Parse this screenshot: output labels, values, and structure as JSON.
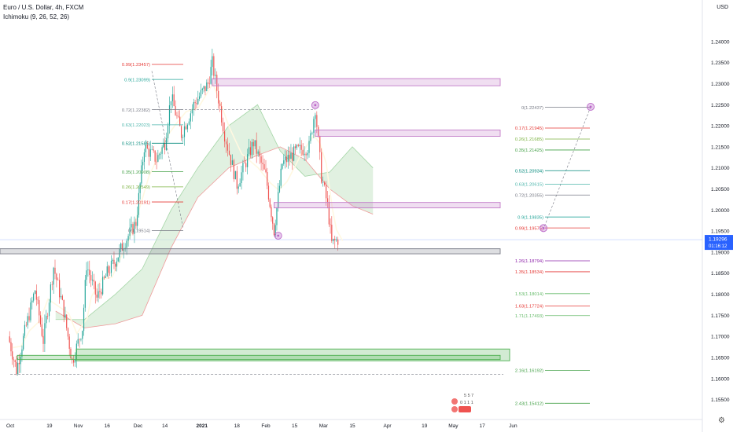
{
  "header": {
    "symbol_title": "Euro / U.S. Dollar, 4h, FXCM",
    "indicator_label": "Ichimoku (9, 26, 52, 26)",
    "currency": "USD"
  },
  "price_tag": {
    "price": "1.19296",
    "countdown": "01:16:12"
  },
  "chart_data": {
    "type": "candlestick",
    "symbol": "EURUSD",
    "timeframe": "4h",
    "ylim": [
      1.1525,
      1.2465
    ],
    "y_ticks": [
      "1.15500",
      "1.16000",
      "1.16500",
      "1.17000",
      "1.17500",
      "1.18000",
      "1.18500",
      "1.19000",
      "1.19500",
      "1.20000",
      "1.20500",
      "1.21000",
      "1.21500",
      "1.22000",
      "1.22500",
      "1.23000",
      "1.23500",
      "1.24000"
    ],
    "x_ticks": [
      "Oct",
      "19",
      "Nov",
      "16",
      "Dec",
      "14",
      "2021",
      "18",
      "Feb",
      "15",
      "Mar",
      "15",
      "Apr",
      "19",
      "May",
      "17",
      "Jun"
    ],
    "price_path": [
      [
        "Sep 29",
        1.17
      ],
      [
        "Oct 3",
        1.162
      ],
      [
        "Oct 7",
        1.171
      ],
      [
        "Oct 12",
        1.181
      ],
      [
        "Oct 16",
        1.169
      ],
      [
        "Oct 21",
        1.1865
      ],
      [
        "Oct 26",
        1.176
      ],
      [
        "Oct 30",
        1.164
      ],
      [
        "Nov 4",
        1.172
      ],
      [
        "Nov 6",
        1.187
      ],
      [
        "Nov 11",
        1.179
      ],
      [
        "Nov 16",
        1.185
      ],
      [
        "Nov 20",
        1.188
      ],
      [
        "Nov 24",
        1.192
      ],
      [
        "Nov 30",
        1.197
      ],
      [
        "Dec 4",
        1.215
      ],
      [
        "Dec 10",
        1.212
      ],
      [
        "Dec 14",
        1.216
      ],
      [
        "Dec 17",
        1.227
      ],
      [
        "Dec 22",
        1.218
      ],
      [
        "Dec 28",
        1.225
      ],
      [
        "Jan 4",
        1.23
      ],
      [
        "Jan 6",
        1.2349
      ],
      [
        "Jan 12",
        1.218
      ],
      [
        "Jan 18",
        1.206
      ],
      [
        "Jan 26",
        1.216
      ],
      [
        "Feb 1",
        1.208
      ],
      [
        "Feb 5",
        1.1952
      ],
      [
        "Feb 9",
        1.211
      ],
      [
        "Feb 16",
        1.214
      ],
      [
        "Feb 22",
        1.215
      ],
      [
        "Feb 25",
        1.2243
      ],
      [
        "Feb 28",
        1.208
      ],
      [
        "Mar 3",
        1.201
      ],
      [
        "Mar 5",
        1.192
      ],
      [
        "Mar 8",
        1.193
      ]
    ],
    "cloud_span_a": [
      [
        "Oct 22",
        1.174
      ],
      [
        "Nov 5",
        1.174
      ],
      [
        "Nov 20",
        1.18
      ],
      [
        "Dec 3",
        1.186
      ],
      [
        "Dec 17",
        1.2
      ],
      [
        "Dec 30",
        1.21
      ],
      [
        "Jan 14",
        1.22
      ],
      [
        "Jan 28",
        1.225
      ],
      [
        "Feb 8",
        1.214
      ],
      [
        "Feb 20",
        1.208
      ],
      [
        "Mar 4",
        1.209
      ],
      [
        "Mar 15",
        1.215
      ],
      [
        "Mar 25",
        1.21
      ]
    ],
    "cloud_span_b": [
      [
        "Oct 22",
        1.176
      ],
      [
        "Nov 5",
        1.172
      ],
      [
        "Nov 20",
        1.173
      ],
      [
        "Dec 3",
        1.175
      ],
      [
        "Dec 17",
        1.191
      ],
      [
        "Dec 30",
        1.203
      ],
      [
        "Jan 14",
        1.21
      ],
      [
        "Jan 28",
        1.213
      ],
      [
        "Feb 8",
        1.215
      ],
      [
        "Feb 20",
        1.212
      ],
      [
        "Mar 4",
        1.205
      ],
      [
        "Mar 15",
        1.201
      ],
      [
        "Mar 25",
        1.199
      ]
    ],
    "fib_left": {
      "levels": [
        {
          "label": "0.99(1.23457)",
          "color": "#e53935"
        },
        {
          "label": "0.9(1.23099)",
          "color": "#26a69a"
        },
        {
          "label": "0.72(1.22382)",
          "color": "#787b86"
        },
        {
          "label": "0.63(1.22023)",
          "color": "#4db6ac"
        },
        {
          "label": "0.52(1.21585)",
          "color": "#00897b"
        },
        {
          "label": "0.35(1.20908)",
          "color": "#43a047"
        },
        {
          "label": "0.26(1.20549)",
          "color": "#7cb342"
        },
        {
          "label": "0.17(1.20191)",
          "color": "#e53935"
        },
        {
          "label": "0(1.19514)",
          "color": "#787b86"
        }
      ]
    },
    "fib_right": {
      "levels": [
        {
          "label": "0(1.22437)",
          "color": "#787b86"
        },
        {
          "label": "0.17(1.21945)",
          "color": "#e53935"
        },
        {
          "label": "0.26(1.21685)",
          "color": "#7cb342"
        },
        {
          "label": "0.35(1.21425)",
          "color": "#43a047"
        },
        {
          "label": "0.52(1.20934)",
          "color": "#00897b"
        },
        {
          "label": "0.63(1.20615)",
          "color": "#4db6ac"
        },
        {
          "label": "0.72(1.20355)",
          "color": "#787b86"
        },
        {
          "label": "0.9(1.19835)",
          "color": "#26a69a"
        },
        {
          "label": "0.99(1.19575)",
          "color": "#e53935"
        },
        {
          "label": "1.26(1.18794)",
          "color": "#8e24aa"
        },
        {
          "label": "1.35(1.18534)",
          "color": "#e53935"
        },
        {
          "label": "1.53(1.18014)",
          "color": "#66bb6a"
        },
        {
          "label": "1.63(1.17724)",
          "color": "#e53935"
        },
        {
          "label": "1.71(1.17493)",
          "color": "#66bb6a"
        },
        {
          "label": "2.16(1.16192)",
          "color": "#43a047"
        },
        {
          "label": "2.43(1.15412)",
          "color": "#43a047"
        }
      ]
    },
    "zones": [
      {
        "kind": "resistance",
        "color": "#c27ac8"
      },
      {
        "kind": "resistance",
        "color": "#c27ac8"
      },
      {
        "kind": "pivot",
        "color": "#c27ac8"
      },
      {
        "kind": "current",
        "color": "#787b86"
      },
      {
        "kind": "support",
        "color": "#4caf50"
      },
      {
        "kind": "support",
        "color": "#4caf50"
      }
    ],
    "x_range": [
      "Sep 25 2020",
      "Jun 17 2021"
    ],
    "grid": false,
    "legend_position": "top-left"
  },
  "colors": {
    "up": "#26a69a",
    "down": "#ef5350",
    "span_a": "#a5d6a7",
    "span_b": "#ef9a9a",
    "cloud_up": "#c8e6c9",
    "cloud_down": "#f8e0c0",
    "base_line": "#fff8e1",
    "marker": "#ba68c8",
    "price_tag": "#2962ff",
    "axis_text": "#131722"
  },
  "event_labels": [
    "5 5 7",
    "0 1 1 1"
  ]
}
